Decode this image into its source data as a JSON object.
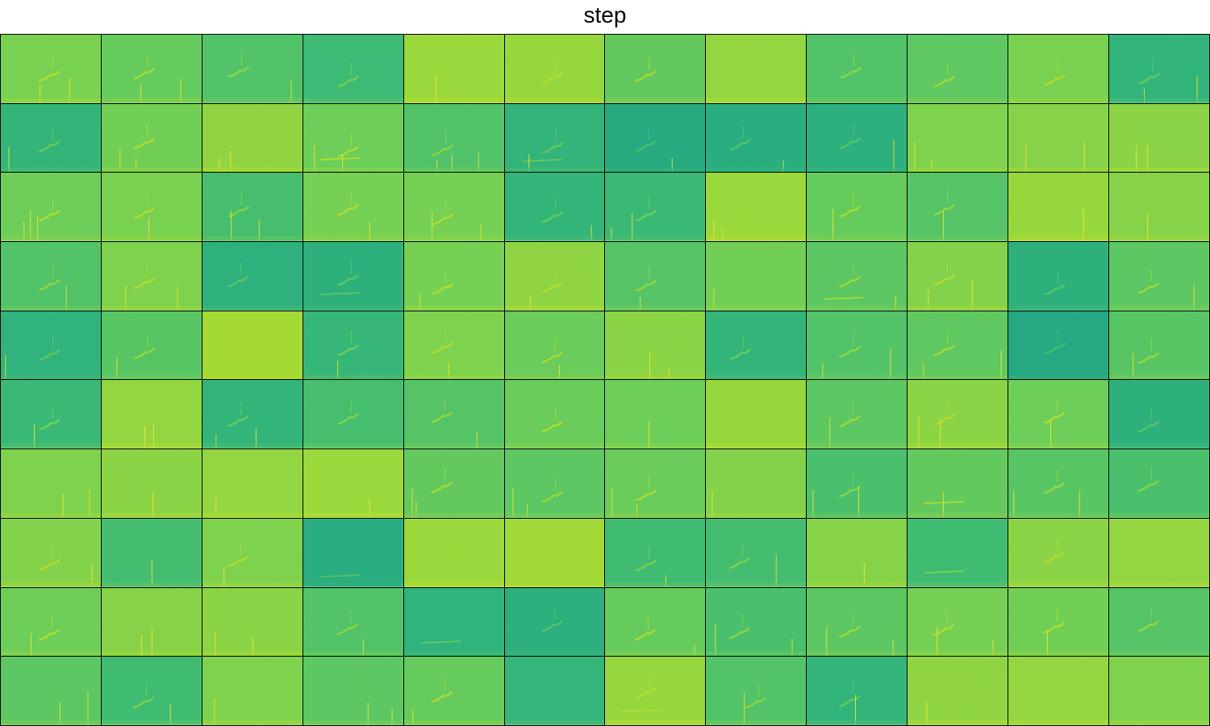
{
  "title": "step",
  "grid": {
    "rows": 10,
    "cols": 12
  },
  "palette": {
    "dark": "#20a386",
    "mid": "#35b779",
    "light": "#6ece58",
    "bright": "#b5de2b",
    "accent": "#fde725"
  },
  "tiles": [
    {
      "bg": 0.72,
      "call": true,
      "line": false,
      "spikes": 2
    },
    {
      "bg": 0.62,
      "call": true,
      "line": false,
      "spikes": 2
    },
    {
      "bg": 0.5,
      "call": true,
      "line": false,
      "spikes": 1
    },
    {
      "bg": 0.38,
      "call": true,
      "line": false,
      "spikes": 0
    },
    {
      "bg": 0.88,
      "call": false,
      "line": false,
      "spikes": 1
    },
    {
      "bg": 0.86,
      "call": true,
      "line": false,
      "spikes": 0
    },
    {
      "bg": 0.6,
      "call": true,
      "line": false,
      "spikes": 0
    },
    {
      "bg": 0.84,
      "call": false,
      "line": false,
      "spikes": 0
    },
    {
      "bg": 0.5,
      "call": true,
      "line": false,
      "spikes": 0
    },
    {
      "bg": 0.58,
      "call": true,
      "line": false,
      "spikes": 0
    },
    {
      "bg": 0.72,
      "call": true,
      "line": false,
      "spikes": 0
    },
    {
      "bg": 0.28,
      "call": true,
      "line": false,
      "spikes": 2
    },
    {
      "bg": 0.3,
      "call": true,
      "line": false,
      "spikes": 1
    },
    {
      "bg": 0.68,
      "call": true,
      "line": false,
      "spikes": 2
    },
    {
      "bg": 0.82,
      "call": false,
      "line": false,
      "spikes": 2
    },
    {
      "bg": 0.66,
      "call": true,
      "line": true,
      "spikes": 2
    },
    {
      "bg": 0.5,
      "call": true,
      "line": false,
      "spikes": 3
    },
    {
      "bg": 0.28,
      "call": true,
      "line": true,
      "spikes": 1
    },
    {
      "bg": 0.12,
      "call": true,
      "line": false,
      "spikes": 1
    },
    {
      "bg": 0.18,
      "call": true,
      "line": false,
      "spikes": 1
    },
    {
      "bg": 0.2,
      "call": true,
      "line": false,
      "spikes": 1
    },
    {
      "bg": 0.74,
      "call": false,
      "line": false,
      "spikes": 2
    },
    {
      "bg": 0.78,
      "call": false,
      "line": false,
      "spikes": 2
    },
    {
      "bg": 0.8,
      "call": false,
      "line": false,
      "spikes": 2
    },
    {
      "bg": 0.66,
      "call": true,
      "line": false,
      "spikes": 3
    },
    {
      "bg": 0.72,
      "call": true,
      "line": false,
      "spikes": 1
    },
    {
      "bg": 0.44,
      "call": true,
      "line": false,
      "spikes": 2
    },
    {
      "bg": 0.7,
      "call": true,
      "line": false,
      "spikes": 1
    },
    {
      "bg": 0.7,
      "call": true,
      "line": false,
      "spikes": 2
    },
    {
      "bg": 0.3,
      "call": true,
      "line": false,
      "spikes": 1
    },
    {
      "bg": 0.36,
      "call": true,
      "line": false,
      "spikes": 2
    },
    {
      "bg": 0.88,
      "call": false,
      "line": false,
      "spikes": 2
    },
    {
      "bg": 0.62,
      "call": true,
      "line": false,
      "spikes": 1
    },
    {
      "bg": 0.52,
      "call": true,
      "line": false,
      "spikes": 1
    },
    {
      "bg": 0.86,
      "call": false,
      "line": false,
      "spikes": 1
    },
    {
      "bg": 0.78,
      "call": false,
      "line": false,
      "spikes": 1
    },
    {
      "bg": 0.5,
      "call": true,
      "line": false,
      "spikes": 1
    },
    {
      "bg": 0.74,
      "call": true,
      "line": false,
      "spikes": 2
    },
    {
      "bg": 0.24,
      "call": true,
      "line": false,
      "spikes": 0
    },
    {
      "bg": 0.22,
      "call": true,
      "line": true,
      "spikes": 0
    },
    {
      "bg": 0.7,
      "call": true,
      "line": false,
      "spikes": 1
    },
    {
      "bg": 0.82,
      "call": true,
      "line": false,
      "spikes": 1
    },
    {
      "bg": 0.52,
      "call": true,
      "line": false,
      "spikes": 1
    },
    {
      "bg": 0.68,
      "call": false,
      "line": false,
      "spikes": 1
    },
    {
      "bg": 0.56,
      "call": true,
      "line": true,
      "spikes": 1
    },
    {
      "bg": 0.76,
      "call": true,
      "line": false,
      "spikes": 2
    },
    {
      "bg": 0.22,
      "call": true,
      "line": false,
      "spikes": 0
    },
    {
      "bg": 0.56,
      "call": true,
      "line": false,
      "spikes": 1
    },
    {
      "bg": 0.26,
      "call": true,
      "line": false,
      "spikes": 1
    },
    {
      "bg": 0.54,
      "call": true,
      "line": false,
      "spikes": 1
    },
    {
      "bg": 0.92,
      "call": false,
      "line": false,
      "spikes": 0
    },
    {
      "bg": 0.34,
      "call": true,
      "line": false,
      "spikes": 1
    },
    {
      "bg": 0.74,
      "call": true,
      "line": false,
      "spikes": 1
    },
    {
      "bg": 0.64,
      "call": true,
      "line": false,
      "spikes": 1
    },
    {
      "bg": 0.8,
      "call": false,
      "line": false,
      "spikes": 2
    },
    {
      "bg": 0.3,
      "call": true,
      "line": false,
      "spikes": 0
    },
    {
      "bg": 0.5,
      "call": true,
      "line": false,
      "spikes": 2
    },
    {
      "bg": 0.58,
      "call": true,
      "line": false,
      "spikes": 2
    },
    {
      "bg": 0.1,
      "call": true,
      "line": false,
      "spikes": 0
    },
    {
      "bg": 0.54,
      "call": true,
      "line": false,
      "spikes": 1
    },
    {
      "bg": 0.36,
      "call": true,
      "line": false,
      "spikes": 1
    },
    {
      "bg": 0.84,
      "call": false,
      "line": false,
      "spikes": 2
    },
    {
      "bg": 0.3,
      "call": true,
      "line": false,
      "spikes": 2
    },
    {
      "bg": 0.44,
      "call": true,
      "line": false,
      "spikes": 0
    },
    {
      "bg": 0.52,
      "call": true,
      "line": false,
      "spikes": 1
    },
    {
      "bg": 0.64,
      "call": true,
      "line": false,
      "spikes": 0
    },
    {
      "bg": 0.66,
      "call": false,
      "line": false,
      "spikes": 1
    },
    {
      "bg": 0.86,
      "call": false,
      "line": false,
      "spikes": 0
    },
    {
      "bg": 0.56,
      "call": true,
      "line": false,
      "spikes": 1
    },
    {
      "bg": 0.8,
      "call": true,
      "line": false,
      "spikes": 2
    },
    {
      "bg": 0.66,
      "call": true,
      "line": false,
      "spikes": 1
    },
    {
      "bg": 0.22,
      "call": true,
      "line": false,
      "spikes": 0
    },
    {
      "bg": 0.74,
      "call": false,
      "line": false,
      "spikes": 2
    },
    {
      "bg": 0.8,
      "call": false,
      "line": false,
      "spikes": 1
    },
    {
      "bg": 0.84,
      "call": false,
      "line": false,
      "spikes": 1
    },
    {
      "bg": 0.88,
      "call": false,
      "line": false,
      "spikes": 1
    },
    {
      "bg": 0.6,
      "call": true,
      "line": false,
      "spikes": 2
    },
    {
      "bg": 0.56,
      "call": true,
      "line": false,
      "spikes": 2
    },
    {
      "bg": 0.64,
      "call": true,
      "line": false,
      "spikes": 2
    },
    {
      "bg": 0.76,
      "call": false,
      "line": false,
      "spikes": 1
    },
    {
      "bg": 0.46,
      "call": true,
      "line": false,
      "spikes": 2
    },
    {
      "bg": 0.6,
      "call": false,
      "line": true,
      "spikes": 1
    },
    {
      "bg": 0.54,
      "call": true,
      "line": false,
      "spikes": 2
    },
    {
      "bg": 0.46,
      "call": true,
      "line": false,
      "spikes": 0
    },
    {
      "bg": 0.76,
      "call": true,
      "line": false,
      "spikes": 1
    },
    {
      "bg": 0.42,
      "call": false,
      "line": false,
      "spikes": 1
    },
    {
      "bg": 0.74,
      "call": true,
      "line": false,
      "spikes": 1
    },
    {
      "bg": 0.16,
      "call": false,
      "line": true,
      "spikes": 0
    },
    {
      "bg": 0.88,
      "call": false,
      "line": false,
      "spikes": 0
    },
    {
      "bg": 0.9,
      "call": false,
      "line": false,
      "spikes": 0
    },
    {
      "bg": 0.4,
      "call": true,
      "line": false,
      "spikes": 1
    },
    {
      "bg": 0.42,
      "call": true,
      "line": false,
      "spikes": 1
    },
    {
      "bg": 0.78,
      "call": false,
      "line": false,
      "spikes": 1
    },
    {
      "bg": 0.4,
      "call": false,
      "line": true,
      "spikes": 0
    },
    {
      "bg": 0.8,
      "call": true,
      "line": false,
      "spikes": 0
    },
    {
      "bg": 0.84,
      "call": false,
      "line": false,
      "spikes": 0
    },
    {
      "bg": 0.66,
      "call": true,
      "line": false,
      "spikes": 1
    },
    {
      "bg": 0.78,
      "call": false,
      "line": false,
      "spikes": 2
    },
    {
      "bg": 0.8,
      "call": false,
      "line": false,
      "spikes": 2
    },
    {
      "bg": 0.5,
      "call": true,
      "line": false,
      "spikes": 1
    },
    {
      "bg": 0.26,
      "call": false,
      "line": true,
      "spikes": 0
    },
    {
      "bg": 0.2,
      "call": true,
      "line": false,
      "spikes": 0
    },
    {
      "bg": 0.62,
      "call": true,
      "line": false,
      "spikes": 1
    },
    {
      "bg": 0.46,
      "call": true,
      "line": false,
      "spikes": 2
    },
    {
      "bg": 0.56,
      "call": true,
      "line": false,
      "spikes": 2
    },
    {
      "bg": 0.7,
      "call": true,
      "line": false,
      "spikes": 2
    },
    {
      "bg": 0.68,
      "call": true,
      "line": false,
      "spikes": 1
    },
    {
      "bg": 0.52,
      "call": true,
      "line": false,
      "spikes": 0
    },
    {
      "bg": 0.56,
      "call": false,
      "line": false,
      "spikes": 2
    },
    {
      "bg": 0.4,
      "call": true,
      "line": false,
      "spikes": 1
    },
    {
      "bg": 0.74,
      "call": false,
      "line": false,
      "spikes": 1
    },
    {
      "bg": 0.56,
      "call": false,
      "line": false,
      "spikes": 2
    },
    {
      "bg": 0.62,
      "call": true,
      "line": false,
      "spikes": 1
    },
    {
      "bg": 0.32,
      "call": false,
      "line": false,
      "spikes": 0
    },
    {
      "bg": 0.86,
      "call": true,
      "line": true,
      "spikes": 0
    },
    {
      "bg": 0.5,
      "call": true,
      "line": false,
      "spikes": 1
    },
    {
      "bg": 0.28,
      "call": true,
      "line": false,
      "spikes": 1
    },
    {
      "bg": 0.82,
      "call": false,
      "line": false,
      "spikes": 1
    },
    {
      "bg": 0.84,
      "call": false,
      "line": false,
      "spikes": 0
    },
    {
      "bg": 0.74,
      "call": false,
      "line": false,
      "spikes": 0
    }
  ]
}
